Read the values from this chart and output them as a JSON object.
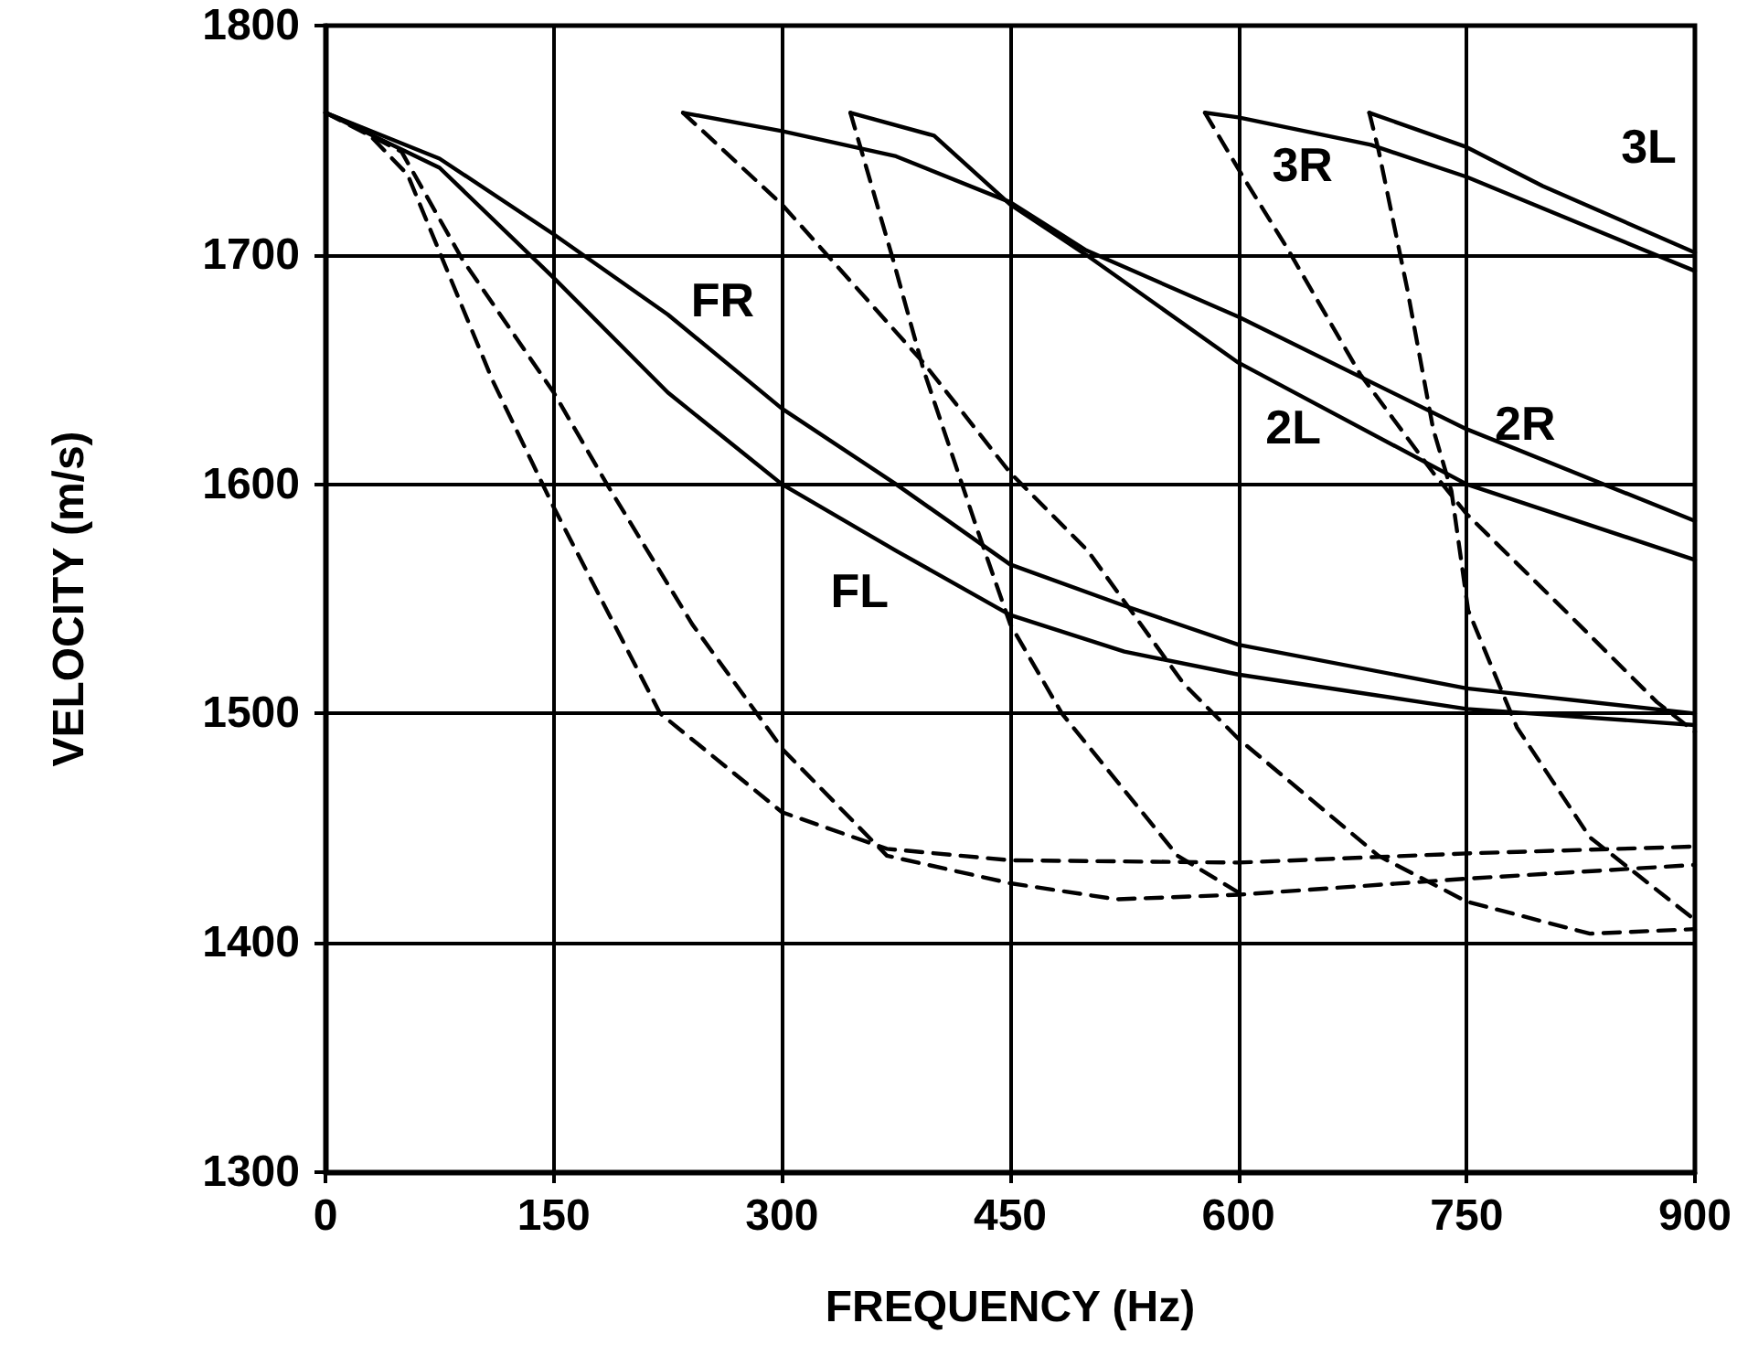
{
  "chart_data": {
    "type": "line",
    "xlabel": "FREQUENCY (Hz)",
    "ylabel": "VELOCITY (m/s)",
    "xlim": [
      0,
      900
    ],
    "xticks": [
      0,
      150,
      300,
      450,
      600,
      750,
      900
    ],
    "ylim": [
      1300,
      1800
    ],
    "yticks": [
      1300,
      1400,
      1500,
      1600,
      1700,
      1800
    ],
    "grid": true,
    "marker": "none",
    "series": [
      {
        "name": "FR",
        "color": "#000000",
        "line_style": "solid",
        "x": [
          0,
          75,
          150,
          225,
          300,
          375,
          450,
          525,
          600,
          750,
          900
        ],
        "values": [
          1762,
          1742,
          1709,
          1674,
          1633,
          1600,
          1565,
          1547,
          1530,
          1511,
          1500
        ]
      },
      {
        "name": "FL",
        "color": "#000000",
        "line_style": "solid",
        "x": [
          0,
          75,
          150,
          225,
          300,
          375,
          450,
          525,
          600,
          750,
          900
        ],
        "values": [
          1762,
          1738,
          1690,
          1640,
          1600,
          1571,
          1543,
          1527,
          1517,
          1502,
          1495
        ]
      },
      {
        "name": "2R",
        "color": "#000000",
        "line_style": "solid",
        "x": [
          235,
          300,
          375,
          450,
          500,
          600,
          750,
          900
        ],
        "values": [
          1762,
          1754,
          1743,
          1723,
          1702,
          1673,
          1624,
          1584
        ]
      },
      {
        "name": "2L",
        "color": "#000000",
        "line_style": "solid",
        "x": [
          345,
          400,
          450,
          500,
          600,
          750,
          900
        ],
        "values": [
          1762,
          1752,
          1722,
          1700,
          1653,
          1600,
          1567
        ]
      },
      {
        "name": "3R",
        "color": "#000000",
        "line_style": "solid",
        "x": [
          578,
          600,
          687,
          750,
          900
        ],
        "values": [
          1762,
          1760,
          1748,
          1734,
          1693
        ]
      },
      {
        "name": "3L",
        "color": "#000000",
        "line_style": "solid",
        "x": [
          686,
          750,
          800,
          900
        ],
        "values": [
          1762,
          1747,
          1730,
          1701
        ]
      },
      {
        "color": "#000000",
        "line_style": "dashed",
        "x": [
          0,
          25,
          54,
          110,
          150,
          220,
          300,
          369,
          450,
          600,
          750,
          900
        ],
        "values": [
          1762,
          1755,
          1735,
          1645,
          1590,
          1500,
          1457,
          1441,
          1436,
          1435,
          1439,
          1442
        ]
      },
      {
        "color": "#000000",
        "line_style": "dashed",
        "x": [
          0,
          50,
          90,
          150,
          185,
          241,
          301,
          369,
          450,
          520,
          600,
          750,
          900
        ],
        "values": [
          1762,
          1745,
          1698,
          1640,
          1600,
          1539,
          1484,
          1438,
          1426,
          1419,
          1421,
          1428,
          1434
        ]
      },
      {
        "color": "#000000",
        "line_style": "dashed",
        "x": [
          235,
          300,
          393,
          450,
          501,
          564,
          600,
          692,
          750,
          831,
          900
        ],
        "values": [
          1762,
          1722,
          1653,
          1605,
          1571,
          1513,
          1489,
          1438,
          1418,
          1404,
          1406
        ]
      },
      {
        "color": "#000000",
        "line_style": "dashed",
        "x": [
          345,
          373,
          393,
          429,
          450,
          484,
          560,
          600
        ],
        "values": [
          1762,
          1698,
          1650,
          1579,
          1539,
          1500,
          1438,
          1422
        ]
      },
      {
        "color": "#000000",
        "line_style": "dashed",
        "x": [
          578,
          604,
          632,
          680,
          728,
          750,
          819,
          875,
          900
        ],
        "values": [
          1762,
          1733,
          1703,
          1648,
          1605,
          1587,
          1542,
          1505,
          1492
        ]
      },
      {
        "color": "#000000",
        "line_style": "dashed",
        "x": [
          686,
          692,
          711,
          728,
          740,
          751,
          783,
          831,
          900
        ],
        "values": [
          1762,
          1746,
          1685,
          1624,
          1597,
          1545,
          1494,
          1446,
          1410
        ]
      }
    ]
  }
}
